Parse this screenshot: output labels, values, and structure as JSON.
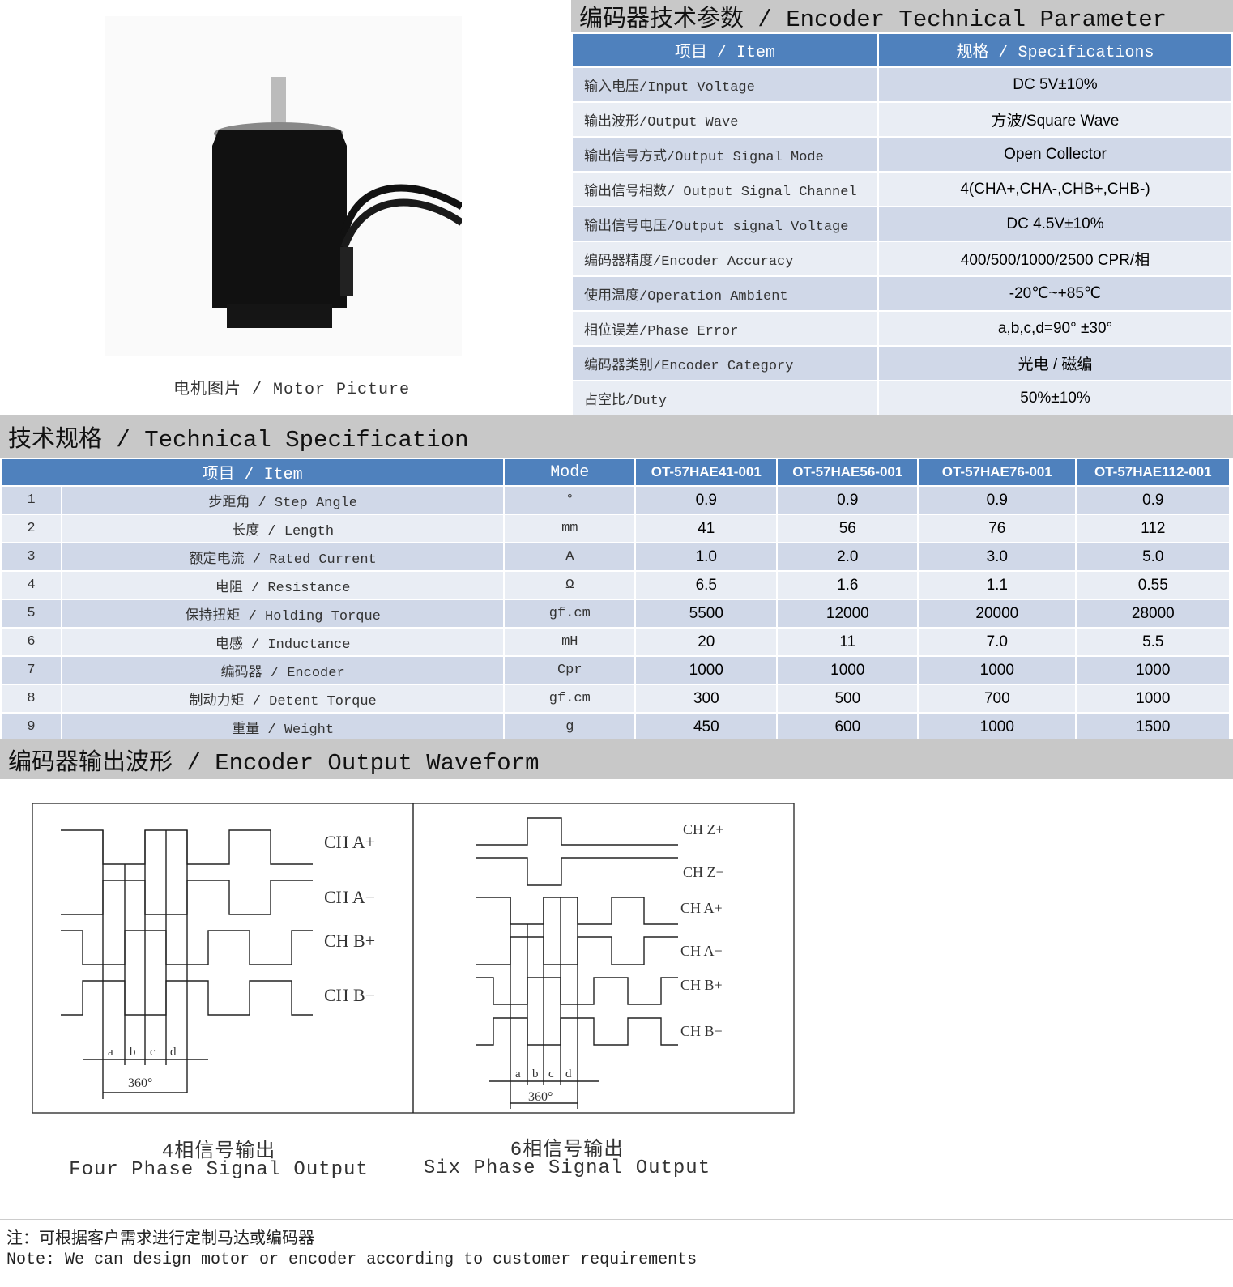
{
  "motor_picture": {
    "caption": "电机图片 / Motor Picture"
  },
  "encoder": {
    "title": "编码器技术参数 / Encoder Technical Parameter",
    "headers": [
      "项目 / Item",
      "规格 / Specifications"
    ],
    "rows": [
      [
        "输入电压/Input Voltage",
        "DC 5V±10%"
      ],
      [
        "输出波形/Output Wave",
        "方波/Square Wave"
      ],
      [
        "输出信号方式/Output Signal Mode",
        "Open Collector"
      ],
      [
        "输出信号相数/ Output Signal Channel",
        "4(CHA+,CHA-,CHB+,CHB-)"
      ],
      [
        "输出信号电压/Output signal Voltage",
        "DC 4.5V±10%"
      ],
      [
        "编码器精度/Encoder Accuracy",
        "400/500/1000/2500 CPR/相"
      ],
      [
        "使用温度/Operation Ambient",
        "-20℃~+85℃"
      ],
      [
        "相位误差/Phase Error",
        "a,b,c,d=90° ±30°"
      ],
      [
        "编码器类别/Encoder Category",
        "光电 / 磁编"
      ],
      [
        "占空比/Duty",
        "50%±10%"
      ]
    ]
  },
  "spec": {
    "title": "技术规格 / Technical Specification",
    "headers": [
      "项目 / Item",
      "Mode",
      "OT-57HAE41-001",
      "OT-57HAE56-001",
      "OT-57HAE76-001",
      "OT-57HAE112-001"
    ],
    "rows": [
      [
        "1",
        "步距角 / Step Angle",
        "°",
        "0.9",
        "0.9",
        "0.9",
        "0.9"
      ],
      [
        "2",
        "长度 / Length",
        "mm",
        "41",
        "56",
        "76",
        "112"
      ],
      [
        "3",
        "额定电流 / Rated Current",
        "A",
        "1.0",
        "2.0",
        "3.0",
        "5.0"
      ],
      [
        "4",
        "电阻 / Resistance",
        "Ω",
        "6.5",
        "1.6",
        "1.1",
        "0.55"
      ],
      [
        "5",
        "保持扭矩 / Holding Torque",
        "gf.cm",
        "5500",
        "12000",
        "20000",
        "28000"
      ],
      [
        "6",
        "电感 / Inductance",
        "mH",
        "20",
        "11",
        "7.0",
        "5.5"
      ],
      [
        "7",
        "编码器 / Encoder",
        "Cpr",
        "1000",
        "1000",
        "1000",
        "1000"
      ],
      [
        "8",
        "制动力矩 / Detent Torque",
        "gf.cm",
        "300",
        "500",
        "700",
        "1000"
      ],
      [
        "9",
        "重量 / Weight",
        "g",
        "450",
        "600",
        "1000",
        "1500"
      ]
    ]
  },
  "waveform": {
    "title": "编码器输出波形 / Encoder Output Waveform",
    "four": {
      "labels": [
        "CH A+",
        "CH A−",
        "CH B+",
        "CH B−"
      ],
      "segments": [
        "a",
        "b",
        "c",
        "d"
      ],
      "period": "360°",
      "caption_cn": "4相信号输出",
      "caption_en": "Four Phase Signal Output"
    },
    "six": {
      "labels": [
        "CH Z+",
        "CH Z−",
        "CH A+",
        "CH A−",
        "CH B+",
        "CH B−"
      ],
      "segments": [
        "a",
        "b",
        "c",
        "d"
      ],
      "period": "360°",
      "caption_cn": "6相信号输出",
      "caption_en": "Six Phase Signal Output"
    }
  },
  "notes": [
    "注：可根据客户需求进行定制马达或编码器",
    "Note: We can design motor or encoder according to customer requirements"
  ],
  "colors": {
    "header_blue": "#4f81bd",
    "row_dark": "#d0d8e8",
    "row_light": "#e9edf4",
    "band_gray": "#c8c8c8"
  }
}
